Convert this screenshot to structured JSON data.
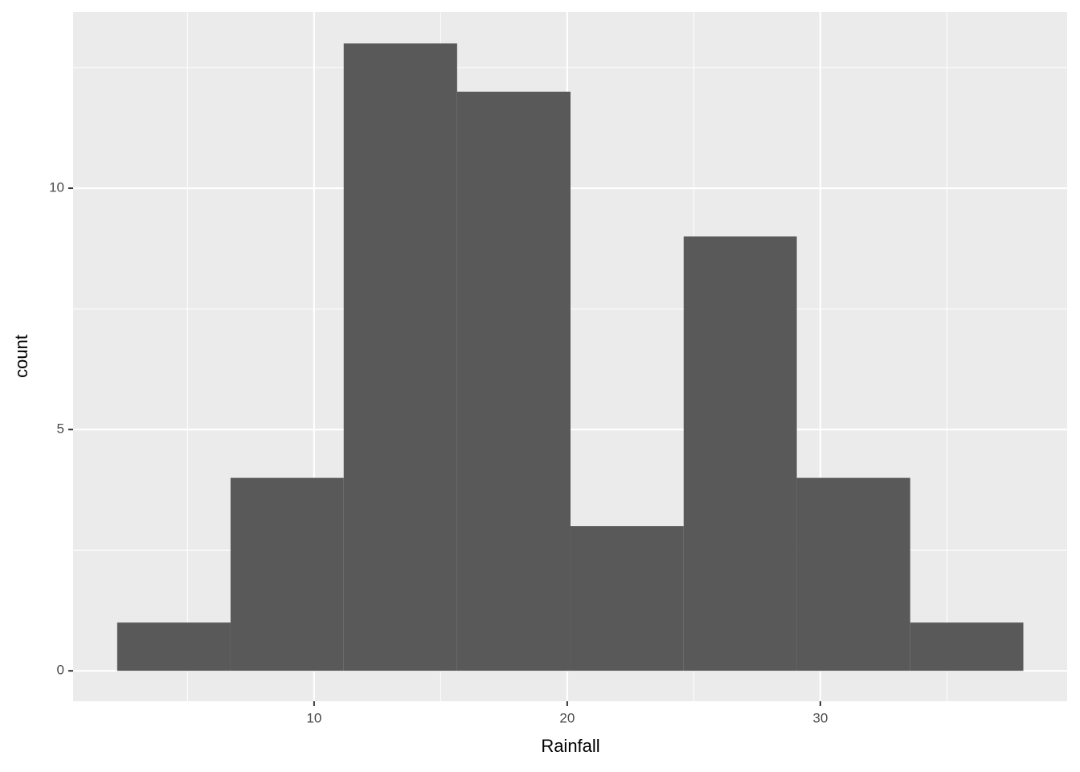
{
  "chart_data": {
    "type": "histogram",
    "x_label": "Rainfall",
    "y_label": "count",
    "bins": [
      2.22,
      6.7,
      11.17,
      15.65,
      20.13,
      24.6,
      29.07,
      33.55,
      38.02
    ],
    "values": [
      1,
      4,
      13,
      12,
      3,
      9,
      4,
      1
    ],
    "color": "#595959",
    "xlim": [
      0.48,
      39.75
    ],
    "ylim": [
      -0.63,
      13.65
    ],
    "xticks": [
      10,
      20,
      30
    ],
    "yticks": [
      0,
      5,
      10
    ],
    "x_minor_grid": [
      5,
      15,
      25,
      35
    ],
    "y_minor_grid": [
      2.5,
      7.5,
      12.5
    ],
    "grid": true
  }
}
